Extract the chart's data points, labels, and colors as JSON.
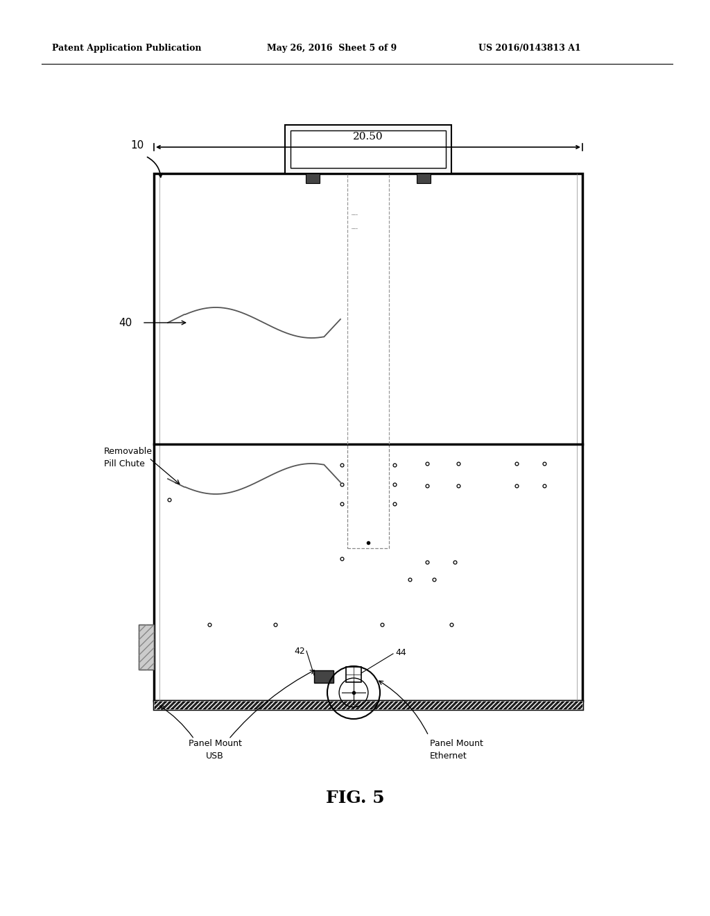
{
  "bg_color": "#ffffff",
  "header_left": "Patent Application Publication",
  "header_mid": "May 26, 2016  Sheet 5 of 9",
  "header_right": "US 2016/0143813 A1",
  "fig_label": "FIG. 5",
  "dim_label": "20.50",
  "label_10": "10",
  "label_40": "40",
  "label_42": "42",
  "label_44": "44",
  "label_removable": "Removable\nPill Chute",
  "label_panel_usb": "Panel Mount\nUSB",
  "label_panel_eth": "Panel Mount\nEthernet"
}
